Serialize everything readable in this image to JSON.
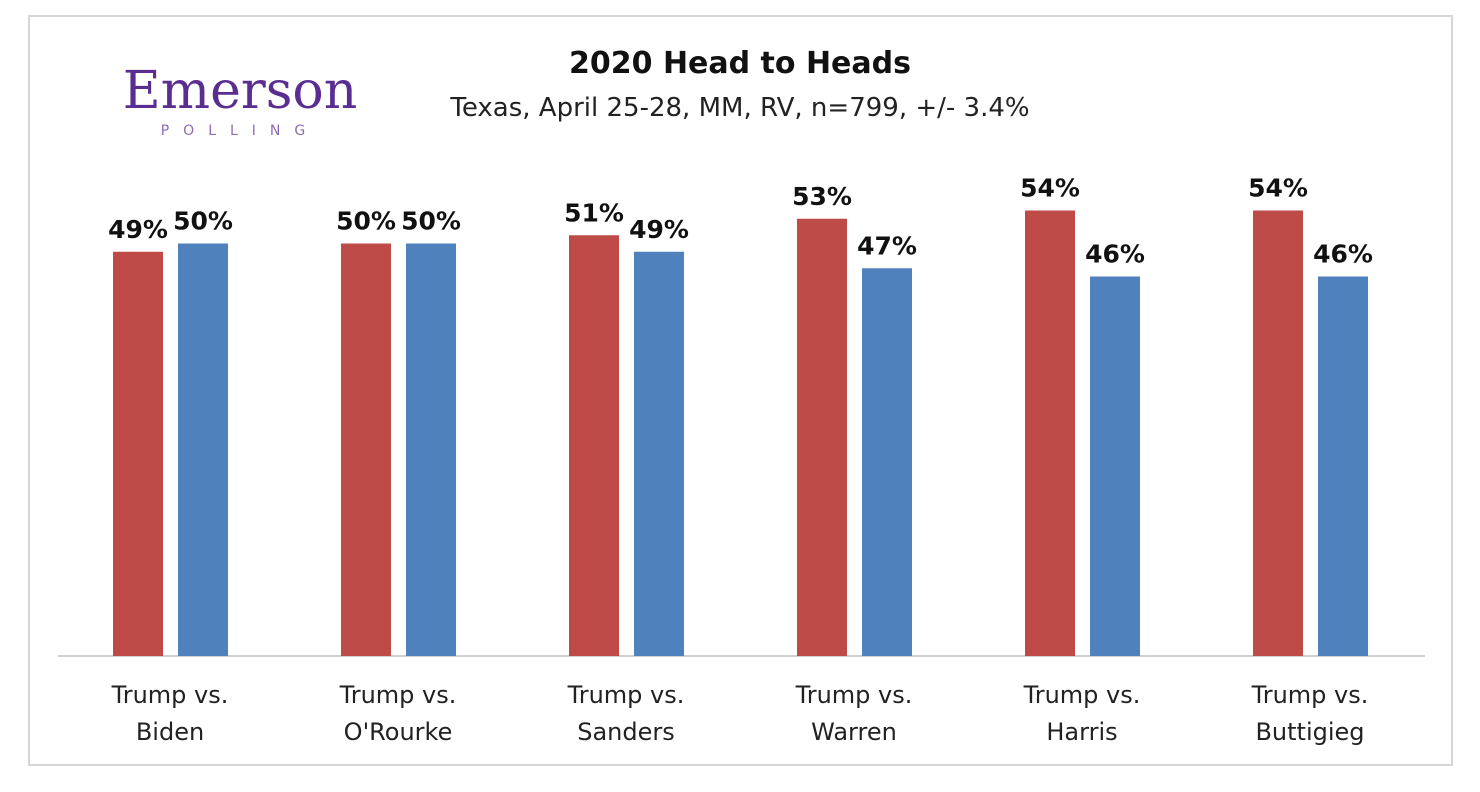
{
  "chart_data": {
    "type": "bar",
    "title": "2020 Head to Heads",
    "subtitle": "Texas, April 25-28, MM, RV, n=799,  +/- 3.4%",
    "logo": {
      "name": "Emerson",
      "tagline": "POLLING"
    },
    "categories": [
      "Trump vs. Biden",
      "Trump vs. O'Rourke",
      "Trump vs. Sanders",
      "Trump vs. Warren",
      "Trump vs. Harris",
      "Trump vs. Buttigieg"
    ],
    "series": [
      {
        "color": "#be4b48",
        "values": [
          49,
          50,
          51,
          53,
          54,
          54
        ],
        "value_labels": [
          "49%",
          "50%",
          "51%",
          "53%",
          "54%",
          "54%"
        ]
      },
      {
        "color": "#4f81bd",
        "values": [
          50,
          50,
          49,
          47,
          46,
          46
        ],
        "value_labels": [
          "50%",
          "50%",
          "49%",
          "47%",
          "46%",
          "46%"
        ]
      }
    ],
    "ylim": [
      0,
      70
    ]
  }
}
